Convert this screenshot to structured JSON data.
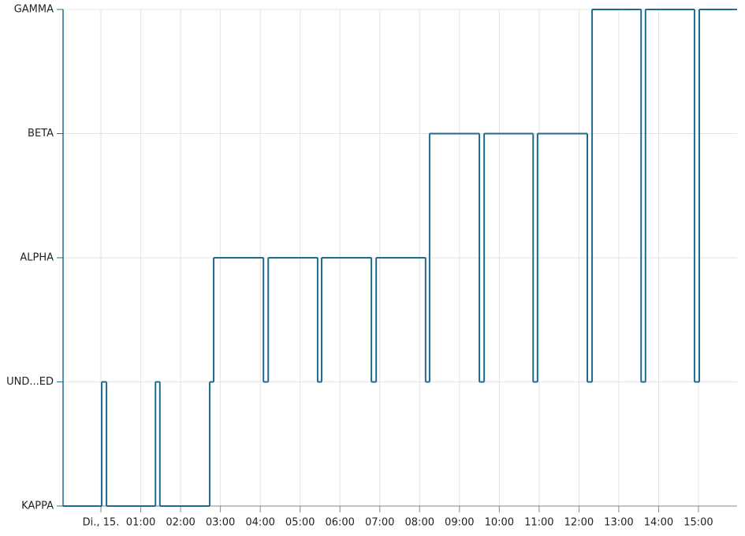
{
  "chart_data": {
    "type": "step",
    "y_categories": [
      "KAPPA",
      "UND...ED",
      "ALPHA",
      "BETA",
      "GAMMA"
    ],
    "x": [
      -0.95,
      0.02,
      0.14,
      1.37,
      1.48,
      2.73,
      2.83,
      4.08,
      4.2,
      5.44,
      5.54,
      6.79,
      6.91,
      8.15,
      8.25,
      9.5,
      9.62,
      10.85,
      10.96,
      12.21,
      12.33,
      13.56,
      13.67,
      14.9,
      15.02
    ],
    "series": [
      {
        "color": "#1f6b8e",
        "values": [
          "KAPPA",
          "UND...ED",
          "KAPPA",
          "UND...ED",
          "KAPPA",
          "UND...ED",
          "ALPHA",
          "UND...ED",
          "ALPHA",
          "UND...ED",
          "ALPHA",
          "UND...ED",
          "ALPHA",
          "UND...ED",
          "BETA",
          "UND...ED",
          "BETA",
          "UND...ED",
          "BETA",
          "UND...ED",
          "GAMMA",
          "UND...ED",
          "GAMMA",
          "UND...ED",
          "GAMMA"
        ]
      }
    ],
    "xlim": [
      -0.95,
      15.97
    ],
    "xticks": [
      {
        "value": 0,
        "label": "Di., 15."
      },
      {
        "value": 1,
        "label": "01:00"
      },
      {
        "value": 2,
        "label": "02:00"
      },
      {
        "value": 3,
        "label": "03:00"
      },
      {
        "value": 4,
        "label": "04:00"
      },
      {
        "value": 5,
        "label": "05:00"
      },
      {
        "value": 6,
        "label": "06:00"
      },
      {
        "value": 7,
        "label": "07:00"
      },
      {
        "value": 8,
        "label": "08:00"
      },
      {
        "value": 9,
        "label": "09:00"
      },
      {
        "value": 10,
        "label": "10:00"
      },
      {
        "value": 11,
        "label": "11:00"
      },
      {
        "value": 12,
        "label": "12:00"
      },
      {
        "value": 13,
        "label": "13:00"
      },
      {
        "value": 14,
        "label": "14:00"
      },
      {
        "value": 15,
        "label": "15:00"
      }
    ],
    "grid": true
  }
}
